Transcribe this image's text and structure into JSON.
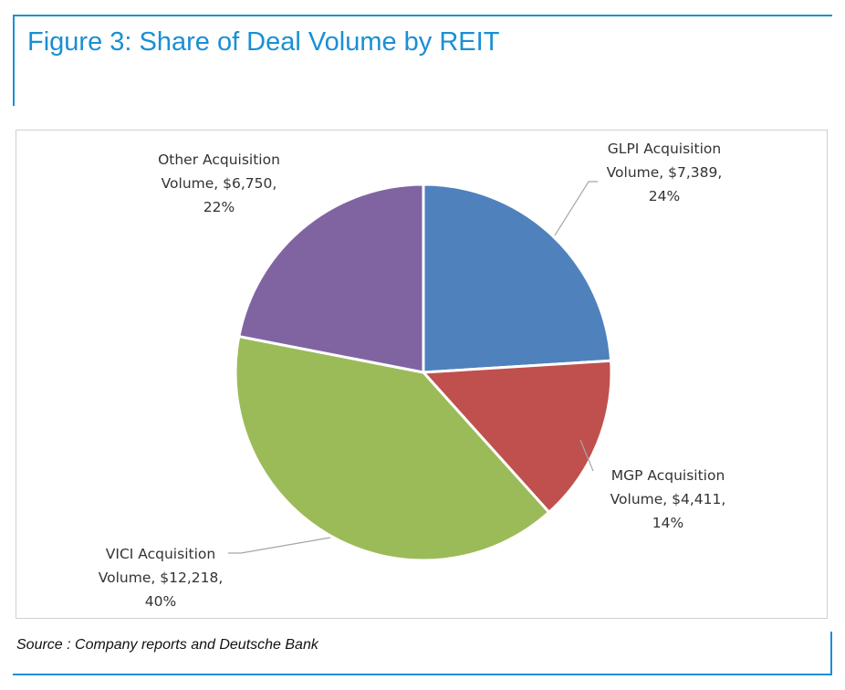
{
  "title": "Figure 3: Share of Deal Volume by REIT",
  "source": "Source : Company reports and Deutsche Bank",
  "chart_data": {
    "type": "pie",
    "title": "Figure 3: Share of Deal Volume by REIT",
    "legend": "none",
    "slices": [
      {
        "name": "GLPI Acquisition Volume",
        "value": 7389,
        "percent": 24,
        "color": "#4f81bd",
        "label_lines": [
          "GLPI Acquisition",
          "Volume, $7,389,",
          "24%"
        ]
      },
      {
        "name": "MGP Acquisition Volume",
        "value": 4411,
        "percent": 14,
        "color": "#c0504d",
        "label_lines": [
          "MGP Acquisition",
          "Volume, $4,411,",
          "14%"
        ]
      },
      {
        "name": "VICI Acquisition Volume",
        "value": 12218,
        "percent": 40,
        "color": "#9bbb59",
        "label_lines": [
          "VICI Acquisition",
          "Volume, $12,218,",
          "40%"
        ]
      },
      {
        "name": "Other Acquisition Volume",
        "value": 6750,
        "percent": 22,
        "color": "#8064a2",
        "label_lines": [
          "Other Acquisition",
          "Volume, $6,750,",
          "22%"
        ]
      }
    ]
  }
}
